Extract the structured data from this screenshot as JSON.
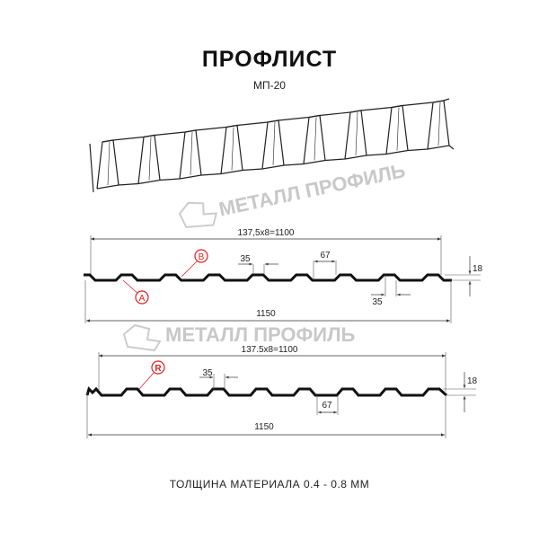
{
  "title": "ПРОФЛИСТ",
  "subtitle": "МП-20",
  "footer": "ТОЛЩИНА МАТЕРИАЛА 0.4 - 0.8 ММ",
  "watermark": "МЕТАЛЛ ПРОФИЛЬ",
  "profile_a": {
    "pitch_label": "137,5x8=1100",
    "width_label": "1150",
    "top_label": "35",
    "bottom_top_label": "67",
    "bottom_label": "35",
    "height_label": "18",
    "marker_a": "A",
    "marker_b": "B"
  },
  "profile_r": {
    "pitch_label": "137.5x8=1100",
    "width_label": "1150",
    "top_label": "35",
    "bottom_label": "67",
    "height_label": "18",
    "marker_r": "R"
  },
  "colors": {
    "profile": "#111111",
    "marker": "#e02020",
    "watermark": "#c8c8c8"
  }
}
